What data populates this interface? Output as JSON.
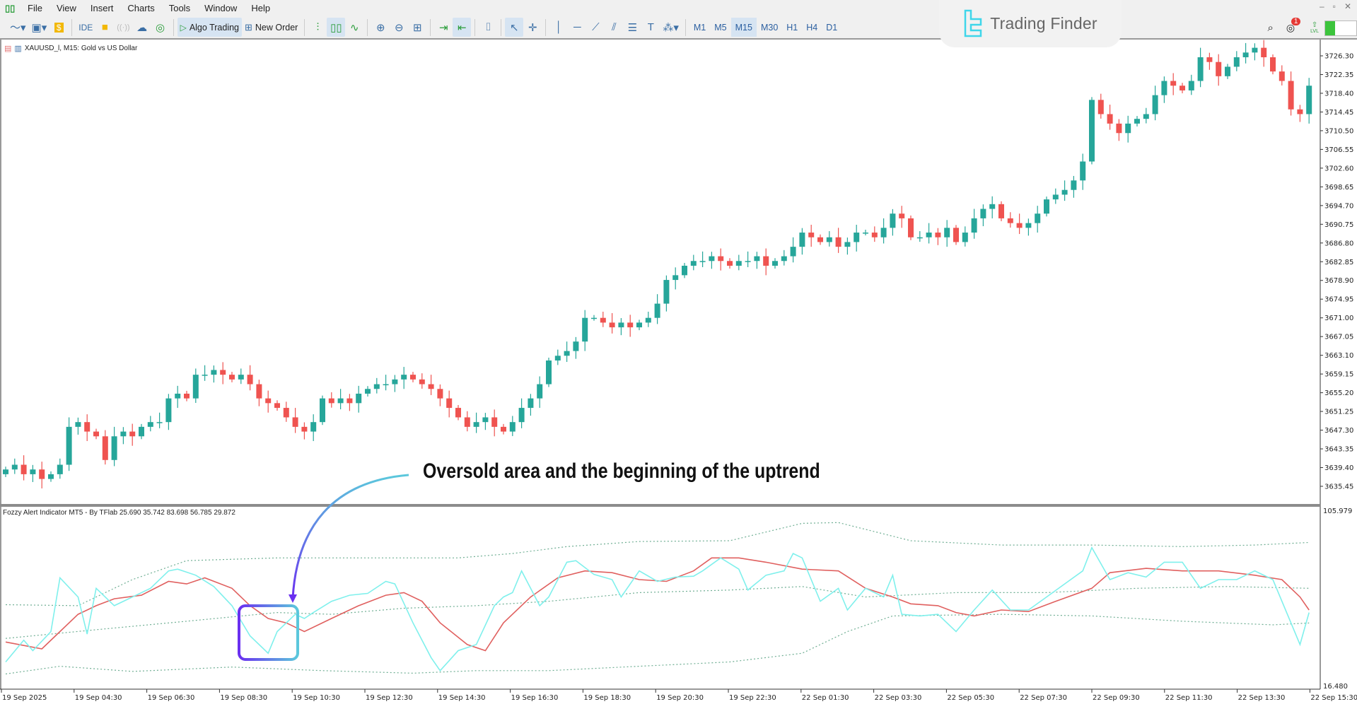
{
  "menu": [
    "File",
    "View",
    "Insert",
    "Charts",
    "Tools",
    "Window",
    "Help"
  ],
  "toolbar": {
    "ide_label": "IDE",
    "algo_trading_label": "Algo Trading",
    "new_order_label": "New Order",
    "timeframes": [
      "M1",
      "M5",
      "M15",
      "M30",
      "H1",
      "H4",
      "D1"
    ],
    "active_timeframe": "M15",
    "notification_count": "1",
    "level_label": "LVL"
  },
  "logo": {
    "name": "Trading Finder"
  },
  "chart": {
    "title": "XAUUSD_l, M15:  Gold vs US Dollar",
    "price_labels": [
      "3726.30",
      "3722.35",
      "3718.40",
      "3714.45",
      "3710.50",
      "3706.55",
      "3702.60",
      "3698.65",
      "3694.70",
      "3690.75",
      "3686.80",
      "3682.85",
      "3678.90",
      "3674.95",
      "3671.00",
      "3667.05",
      "3663.10",
      "3659.15",
      "3655.20",
      "3651.25",
      "3647.30",
      "3643.35",
      "3639.40",
      "3635.45"
    ],
    "time_labels": [
      "19 Sep 2025",
      "19 Sep 04:30",
      "19 Sep 06:30",
      "19 Sep 08:30",
      "19 Sep 10:30",
      "19 Sep 12:30",
      "19 Sep 14:30",
      "19 Sep 16:30",
      "19 Sep 18:30",
      "19 Sep 20:30",
      "19 Sep 22:30",
      "22 Sep 01:30",
      "22 Sep 03:30",
      "22 Sep 05:30",
      "22 Sep 07:30",
      "22 Sep 09:30",
      "22 Sep 11:30",
      "22 Sep 13:30",
      "22 Sep 15:30"
    ]
  },
  "indicator": {
    "title": "Fozzy Alert Indicator MT5 - By TFlab 25.690 35.742 83.698 56.785 29.872",
    "max_label": "105.979",
    "min_label": "16.480"
  },
  "annotation": {
    "text": "Oversold area and the beginning of the uptrend"
  },
  "colors": {
    "bull": "#26a69a",
    "bear": "#ef5350",
    "cyan_line": "#7ff0ec",
    "red_line": "#e0605f",
    "bands": "#6fae93",
    "arrow_start": "#5bc8dc",
    "arrow_end": "#6a2ff0"
  },
  "chart_data": [
    {
      "type": "candlestick",
      "symbol": "XAUUSD_l",
      "timeframe": "M15",
      "ylim": [
        3635.45,
        3726.3
      ],
      "closes": [
        3639,
        3640,
        3638,
        3639,
        3637,
        3638,
        3640,
        3648,
        3649,
        3647,
        3646,
        3641,
        3646,
        3647,
        3646,
        3648,
        3649,
        3649,
        3654,
        3655,
        3654,
        3659,
        3659,
        3660,
        3659,
        3658,
        3659,
        3657,
        3654,
        3653,
        3652,
        3650,
        3648,
        3647,
        3649,
        3654,
        3653,
        3654,
        3653,
        3655,
        3656,
        3657,
        3657,
        3658,
        3659,
        3658,
        3657,
        3656,
        3654,
        3652,
        3650,
        3648,
        3649,
        3650,
        3648,
        3647,
        3649,
        3652,
        3654,
        3657,
        3662,
        3663,
        3664,
        3666,
        3671,
        3671,
        3670,
        3669,
        3670,
        3669,
        3670,
        3671,
        3674,
        3679,
        3680,
        3682,
        3683,
        3683,
        3684,
        3683,
        3682,
        3683,
        3683,
        3684,
        3682,
        3683,
        3684,
        3686,
        3689,
        3688,
        3687,
        3688,
        3686,
        3687,
        3689,
        3689,
        3688,
        3690,
        3693,
        3692,
        3688,
        3688,
        3689,
        3688,
        3690,
        3687,
        3689,
        3692,
        3694,
        3695,
        3692,
        3691,
        3690,
        3691,
        3693,
        3696,
        3697,
        3698,
        3700,
        3704,
        3717,
        3714,
        3712,
        3710,
        3712,
        3713,
        3714,
        3718,
        3721,
        3720,
        3719,
        3721,
        3726,
        3725,
        3722,
        3724,
        3726,
        3727,
        3728,
        3726,
        3723,
        3721,
        3715,
        3714,
        3720
      ]
    },
    {
      "type": "line",
      "ylim": [
        16.48,
        105.979
      ],
      "series": [
        {
          "role": "fast",
          "points": [
            [
              0,
              29.2
            ],
            [
              2,
              40.2
            ],
            [
              3,
              34.9
            ],
            [
              5,
              44.6
            ],
            [
              6,
              71.8
            ],
            [
              8,
              62.1
            ],
            [
              9,
              43.3
            ],
            [
              10,
              66.5
            ],
            [
              12,
              57.7
            ],
            [
              14,
              62.1
            ],
            [
              16,
              66.5
            ],
            [
              18,
              75.3
            ],
            [
              19,
              76.2
            ],
            [
              21,
              73.1
            ],
            [
              23,
              67.4
            ],
            [
              25,
              57.7
            ],
            [
              27,
              42.4
            ],
            [
              29,
              33.6
            ],
            [
              30,
              44.6
            ],
            [
              32,
              53.3
            ],
            [
              33,
              51.2
            ],
            [
              34,
              54.2
            ],
            [
              36,
              59.9
            ],
            [
              38,
              63.0
            ],
            [
              40,
              63.9
            ],
            [
              42,
              70.0
            ],
            [
              43,
              68.7
            ],
            [
              45,
              49.0
            ],
            [
              47,
              31.4
            ],
            [
              48,
              24.8
            ],
            [
              50,
              34.9
            ],
            [
              52,
              38.0
            ],
            [
              54,
              57.7
            ],
            [
              55,
              62.1
            ],
            [
              56,
              64.3
            ],
            [
              57,
              75.3
            ],
            [
              59,
              57.7
            ],
            [
              60,
              62.1
            ],
            [
              62,
              79.7
            ],
            [
              63,
              80.5
            ],
            [
              65,
              73.5
            ],
            [
              67,
              70.9
            ],
            [
              68,
              62.1
            ],
            [
              70,
              75.3
            ],
            [
              72,
              70.0
            ],
            [
              74,
              72.2
            ],
            [
              76,
              72.6
            ],
            [
              77,
              75.3
            ],
            [
              79,
              81.9
            ],
            [
              81,
              76.2
            ],
            [
              82,
              65.6
            ],
            [
              84,
              73.1
            ],
            [
              86,
              75.3
            ],
            [
              87,
              84.1
            ],
            [
              88,
              81.9
            ],
            [
              90,
              59.9
            ],
            [
              92,
              66.5
            ],
            [
              93,
              55.5
            ],
            [
              95,
              66.5
            ],
            [
              97,
              62.1
            ],
            [
              98,
              73.1
            ],
            [
              99,
              53.3
            ],
            [
              101,
              52.5
            ],
            [
              103,
              53.3
            ],
            [
              105,
              44.6
            ],
            [
              107,
              55.5
            ],
            [
              109,
              65.6
            ],
            [
              111,
              55.5
            ],
            [
              113,
              55.5
            ],
            [
              115,
              62.1
            ],
            [
              117,
              68.7
            ],
            [
              119,
              75.3
            ],
            [
              120,
              87.1
            ],
            [
              122,
              70.9
            ],
            [
              124,
              74.4
            ],
            [
              126,
              72.2
            ],
            [
              128,
              79.7
            ],
            [
              130,
              79.7
            ],
            [
              132,
              66.5
            ],
            [
              134,
              70.9
            ],
            [
              136,
              70.9
            ],
            [
              138,
              75.3
            ],
            [
              140,
              70.9
            ],
            [
              142,
              49.0
            ],
            [
              143,
              38.0
            ],
            [
              144,
              54.2
            ]
          ]
        },
        {
          "role": "slow",
          "points": [
            [
              0,
              39.3
            ],
            [
              4,
              35.8
            ],
            [
              6,
              44.6
            ],
            [
              8,
              53.3
            ],
            [
              10,
              57.7
            ],
            [
              12,
              61.2
            ],
            [
              15,
              63.0
            ],
            [
              18,
              70.0
            ],
            [
              20,
              68.7
            ],
            [
              22,
              71.8
            ],
            [
              25,
              66.5
            ],
            [
              27,
              57.7
            ],
            [
              29,
              51.2
            ],
            [
              31,
              49.0
            ],
            [
              33,
              44.6
            ],
            [
              36,
              51.2
            ],
            [
              39,
              57.7
            ],
            [
              42,
              63.0
            ],
            [
              44,
              64.3
            ],
            [
              46,
              59.9
            ],
            [
              48,
              49.0
            ],
            [
              51,
              38.0
            ],
            [
              53,
              34.9
            ],
            [
              55,
              49.0
            ],
            [
              58,
              62.1
            ],
            [
              61,
              71.8
            ],
            [
              64,
              75.3
            ],
            [
              67,
              74.4
            ],
            [
              70,
              70.9
            ],
            [
              73,
              70.0
            ],
            [
              76,
              75.3
            ],
            [
              78,
              81.9
            ],
            [
              81,
              81.9
            ],
            [
              84,
              79.7
            ],
            [
              88,
              76.2
            ],
            [
              92,
              75.3
            ],
            [
              95,
              66.5
            ],
            [
              98,
              62.1
            ],
            [
              100,
              58.6
            ],
            [
              103,
              57.7
            ],
            [
              105,
              54.2
            ],
            [
              107,
              52.5
            ],
            [
              110,
              55.5
            ],
            [
              113,
              54.7
            ],
            [
              116,
              59.9
            ],
            [
              120,
              66.5
            ],
            [
              122,
              74.4
            ],
            [
              126,
              76.6
            ],
            [
              130,
              75.3
            ],
            [
              134,
              75.3
            ],
            [
              138,
              73.1
            ],
            [
              141,
              70.9
            ],
            [
              143,
              62.1
            ],
            [
              144,
              55.5
            ]
          ]
        },
        {
          "role": "upper-band",
          "points": [
            [
              0,
              58.2
            ],
            [
              8,
              57.7
            ],
            [
              14,
              70.9
            ],
            [
              20,
              80.5
            ],
            [
              30,
              81.9
            ],
            [
              40,
              81.9
            ],
            [
              50,
              81.9
            ],
            [
              56,
              84.1
            ],
            [
              62,
              87.6
            ],
            [
              70,
              90.2
            ],
            [
              80,
              90.6
            ],
            [
              88,
              99.4
            ],
            [
              92,
              99.8
            ],
            [
              100,
              90.6
            ],
            [
              110,
              88.4
            ],
            [
              120,
              88.4
            ],
            [
              130,
              87.6
            ],
            [
              138,
              88.4
            ],
            [
              144,
              89.7
            ]
          ]
        },
        {
          "role": "middle-band",
          "points": [
            [
              0,
              41.1
            ],
            [
              10,
              45.5
            ],
            [
              20,
              49.8
            ],
            [
              30,
              54.2
            ],
            [
              36,
              53.3
            ],
            [
              44,
              56.4
            ],
            [
              52,
              57.7
            ],
            [
              60,
              59.9
            ],
            [
              70,
              64.3
            ],
            [
              80,
              65.6
            ],
            [
              88,
              67.4
            ],
            [
              95,
              62.1
            ],
            [
              105,
              64.3
            ],
            [
              115,
              64.3
            ],
            [
              125,
              66.5
            ],
            [
              135,
              67.4
            ],
            [
              144,
              66.5
            ]
          ]
        },
        {
          "role": "lower-band",
          "points": [
            [
              0,
              23.1
            ],
            [
              6,
              27.0
            ],
            [
              14,
              24.4
            ],
            [
              25,
              26.6
            ],
            [
              35,
              24.8
            ],
            [
              45,
              23.5
            ],
            [
              52,
              24.8
            ],
            [
              60,
              24.8
            ],
            [
              70,
              27.0
            ],
            [
              80,
              29.2
            ],
            [
              88,
              33.6
            ],
            [
              93,
              44.6
            ],
            [
              98,
              52.5
            ],
            [
              110,
              53.3
            ],
            [
              120,
              52.5
            ],
            [
              130,
              49.8
            ],
            [
              140,
              48.0
            ],
            [
              144,
              48.9
            ]
          ]
        }
      ]
    }
  ]
}
